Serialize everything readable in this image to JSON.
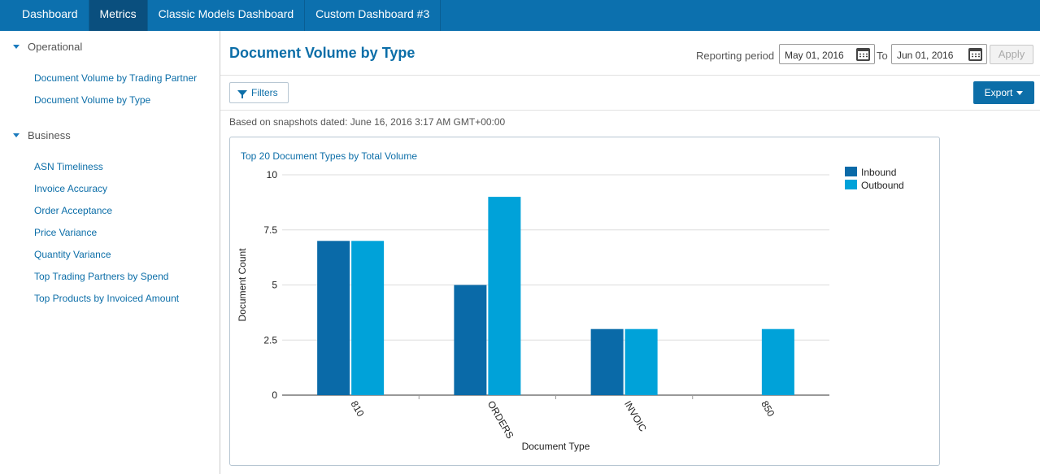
{
  "nav": {
    "tabs": [
      {
        "label": "Dashboard"
      },
      {
        "label": "Metrics"
      },
      {
        "label": "Classic Models Dashboard"
      },
      {
        "label": "Custom Dashboard #3"
      }
    ],
    "active": "Metrics"
  },
  "sidebar": {
    "sections": [
      {
        "title": "Operational",
        "items": [
          "Document Volume by Trading Partner",
          "Document Volume by Type"
        ]
      },
      {
        "title": "Business",
        "items": [
          "ASN Timeliness",
          "Invoice Accuracy",
          "Order Acceptance",
          "Price Variance",
          "Quantity Variance",
          "Top Trading Partners by Spend",
          "Top Products by Invoiced Amount"
        ]
      }
    ]
  },
  "header": {
    "title": "Document Volume by Type",
    "period_label": "Reporting period",
    "from_date": "May 01, 2016",
    "to_label": "To",
    "to_date": "Jun 01, 2016",
    "apply_label": "Apply",
    "filters_label": "Filters",
    "export_label": "Export",
    "snapshot_text": "Based on snapshots dated: June 16, 2016 3:17 AM GMT+00:00"
  },
  "colors": {
    "inbound": "#0a6aa8",
    "outbound": "#00a2d9",
    "accent": "#0c6ea8"
  },
  "chart_data": {
    "type": "bar",
    "title": "Top 20 Document Types by Total Volume",
    "xlabel": "Document Type",
    "ylabel": "Document Count",
    "categories": [
      "810",
      "ORDERS",
      "INVOIC",
      "850"
    ],
    "series": [
      {
        "name": "Inbound",
        "values": [
          7,
          5,
          3,
          0
        ]
      },
      {
        "name": "Outbound",
        "values": [
          7,
          9,
          3,
          3
        ]
      }
    ],
    "ylim": [
      0,
      10
    ],
    "yticks": [
      "0",
      "2.5",
      "5",
      "7.5",
      "10"
    ],
    "grid": true,
    "legend": "top-right"
  }
}
